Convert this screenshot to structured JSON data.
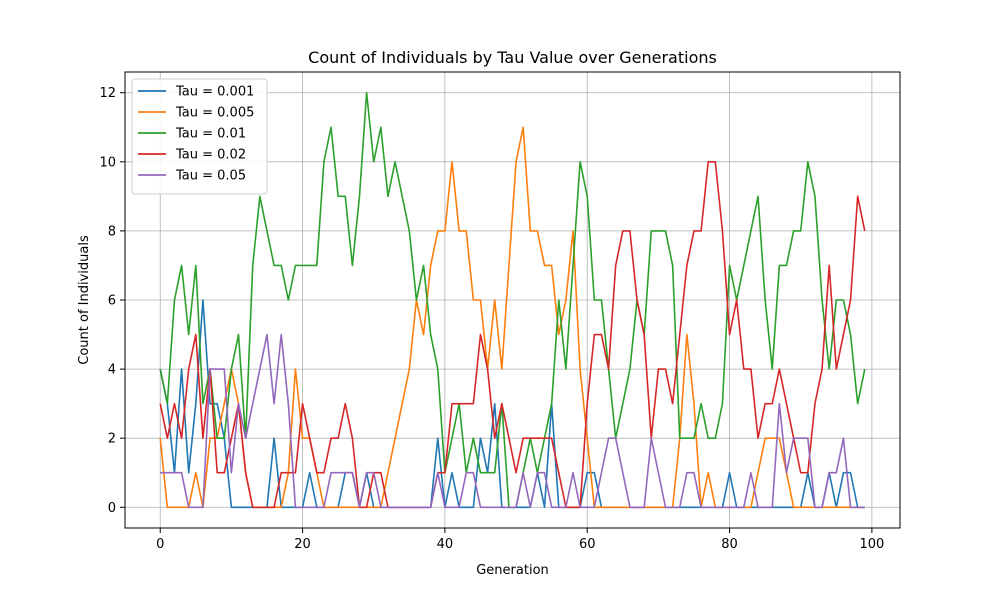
{
  "chart_data": {
    "type": "line",
    "title": "Count of Individuals by Tau Value over Generations",
    "xlabel": "Generation",
    "ylabel": "Count of Individuals",
    "xlim": [
      -4.95,
      103.95
    ],
    "ylim": [
      -0.6,
      12.6
    ],
    "xticks": [
      0,
      20,
      40,
      60,
      80,
      100
    ],
    "yticks": [
      0,
      2,
      4,
      6,
      8,
      10,
      12
    ],
    "grid": true,
    "legend_position": "top-left",
    "x_start": 0,
    "series": [
      {
        "name": "Tau = 0.001",
        "color": "#1f77b4",
        "values": [
          4,
          3,
          1,
          4,
          1,
          3,
          6,
          3,
          3,
          2,
          0,
          0,
          0,
          0,
          0,
          0,
          2,
          0,
          0,
          0,
          0,
          1,
          0,
          0,
          0,
          0,
          1,
          1,
          0,
          1,
          0,
          0,
          0,
          0,
          0,
          0,
          0,
          0,
          0,
          2,
          0,
          1,
          0,
          0,
          0,
          2,
          1,
          3,
          0,
          0,
          0,
          0,
          0,
          1,
          0,
          3,
          0,
          0,
          0,
          0,
          1,
          1,
          0,
          0,
          0,
          0,
          0,
          0,
          0,
          0,
          0,
          0,
          0,
          0,
          0,
          0,
          0,
          0,
          0,
          0,
          1,
          0,
          0,
          0,
          0,
          0,
          0,
          0,
          0,
          0,
          0,
          1,
          0,
          0,
          1,
          0,
          1,
          1,
          0,
          0
        ]
      },
      {
        "name": "Tau = 0.005",
        "color": "#ff7f0e",
        "values": [
          2,
          0,
          0,
          0,
          0,
          1,
          0,
          2,
          2,
          3,
          4,
          3,
          1,
          0,
          0,
          0,
          0,
          0,
          1,
          4,
          2,
          2,
          1,
          0,
          0,
          0,
          0,
          0,
          0,
          0,
          0,
          0,
          1,
          2,
          3,
          4,
          6,
          5,
          7,
          8,
          8,
          10,
          8,
          8,
          6,
          6,
          4,
          6,
          4,
          7,
          10,
          11,
          8,
          8,
          7,
          7,
          5,
          6,
          8,
          4,
          2,
          0,
          0,
          0,
          0,
          0,
          0,
          0,
          0,
          0,
          0,
          0,
          0,
          2,
          5,
          3,
          0,
          1,
          0,
          0,
          0,
          0,
          0,
          0,
          1,
          2,
          2,
          2,
          1,
          0,
          0,
          0,
          0,
          0,
          0,
          0,
          0,
          0,
          0,
          0
        ]
      },
      {
        "name": "Tau = 0.01",
        "color": "#2ca02c",
        "values": [
          4,
          3,
          6,
          7,
          5,
          7,
          3,
          4,
          2,
          2,
          4,
          5,
          2,
          7,
          9,
          8,
          7,
          7,
          6,
          7,
          7,
          7,
          7,
          10,
          11,
          9,
          9,
          7,
          9,
          12,
          10,
          11,
          9,
          10,
          9,
          8,
          6,
          7,
          5,
          4,
          1,
          2,
          3,
          1,
          2,
          1,
          1,
          1,
          3,
          0,
          0,
          1,
          2,
          1,
          2,
          3,
          6,
          4,
          7,
          10,
          9,
          6,
          6,
          4,
          2,
          3,
          4,
          6,
          5,
          8,
          8,
          8,
          7,
          2,
          2,
          2,
          3,
          2,
          2,
          3,
          7,
          6,
          7,
          8,
          9,
          6,
          4,
          7,
          7,
          8,
          8,
          10,
          9,
          6,
          4,
          6,
          6,
          5,
          3,
          4
        ]
      },
      {
        "name": "Tau = 0.02",
        "color": "#d62728",
        "values": [
          3,
          2,
          3,
          2,
          4,
          5,
          2,
          4,
          1,
          1,
          2,
          3,
          1,
          0,
          0,
          0,
          0,
          1,
          1,
          1,
          3,
          2,
          1,
          1,
          2,
          2,
          3,
          2,
          0,
          0,
          1,
          1,
          0,
          0,
          0,
          0,
          0,
          0,
          0,
          1,
          1,
          3,
          3,
          3,
          3,
          5,
          4,
          2,
          3,
          2,
          1,
          2,
          2,
          2,
          2,
          2,
          1,
          0,
          0,
          0,
          3,
          5,
          5,
          4,
          7,
          8,
          8,
          6,
          5,
          2,
          4,
          4,
          3,
          5,
          7,
          8,
          8,
          10,
          10,
          8,
          5,
          6,
          4,
          4,
          2,
          3,
          3,
          4,
          3,
          2,
          1,
          1,
          3,
          4,
          7,
          4,
          5,
          6,
          9,
          8
        ]
      },
      {
        "name": "Tau = 0.05",
        "color": "#9467bd",
        "values": [
          1,
          1,
          1,
          1,
          0,
          0,
          0,
          4,
          4,
          4,
          1,
          3,
          2,
          3,
          4,
          5,
          3,
          5,
          3,
          0,
          0,
          0,
          0,
          0,
          1,
          1,
          1,
          1,
          0,
          1,
          1,
          0,
          0,
          0,
          0,
          0,
          0,
          0,
          0,
          1,
          0,
          0,
          0,
          1,
          1,
          0,
          0,
          0,
          0,
          0,
          0,
          1,
          0,
          1,
          1,
          0,
          0,
          0,
          1,
          0,
          0,
          0,
          1,
          2,
          2,
          1,
          0,
          0,
          0,
          2,
          1,
          0,
          0,
          0,
          1,
          1,
          0,
          0,
          0,
          0,
          0,
          0,
          0,
          1,
          0,
          0,
          0,
          3,
          1,
          2,
          2,
          2,
          0,
          0,
          1,
          1,
          2,
          0,
          0,
          0
        ]
      }
    ]
  }
}
